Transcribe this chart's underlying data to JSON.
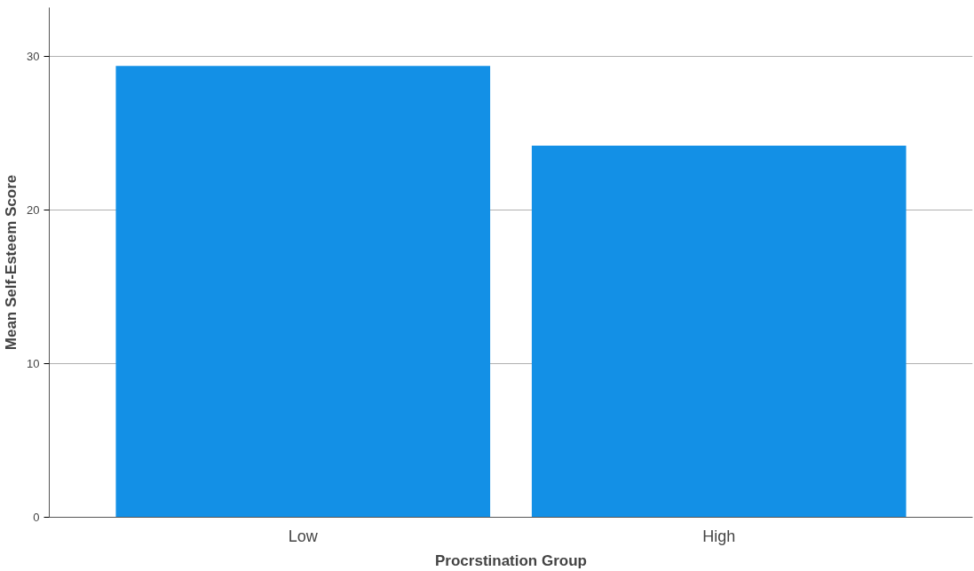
{
  "chart_data": {
    "type": "bar",
    "xlabel": "Procrstination Group",
    "ylabel": "Mean Self-Esteem Score",
    "categories": [
      "Low",
      "High"
    ],
    "series": [
      {
        "color": "#1390e6",
        "values": [
          29.4,
          24.2
        ]
      }
    ],
    "ylim": [
      0,
      33.2
    ],
    "yticks": [
      0,
      10,
      20,
      30
    ],
    "grid": "y"
  }
}
